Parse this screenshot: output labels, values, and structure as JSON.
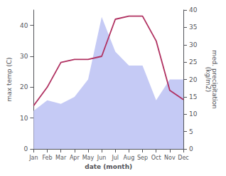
{
  "chart_data": {
    "type": "line",
    "xlabel": "date (month)",
    "ylabel": "max temp (C)",
    "y2label": "med. precipitation\n(kg/m2)",
    "categories": [
      "Jan",
      "Feb",
      "Mar",
      "Apr",
      "May",
      "Jun",
      "Jul",
      "Aug",
      "Sep",
      "Oct",
      "Nov",
      "Dec"
    ],
    "series": [
      {
        "type": "area",
        "axis": "y2",
        "color": "#c5caf5",
        "values": [
          11,
          14,
          13,
          15,
          20,
          38,
          28,
          24,
          24,
          14,
          20,
          20
        ]
      },
      {
        "type": "line",
        "color": "#b03060",
        "values": [
          14,
          20,
          28,
          29,
          29,
          30,
          42,
          43,
          43,
          35,
          19,
          16
        ]
      }
    ],
    "ylim": [
      0,
      45
    ],
    "yticks": [
      0,
      10,
      20,
      30,
      40
    ],
    "y2lim": [
      0,
      40
    ],
    "y2ticks": [
      0,
      5,
      10,
      15,
      20,
      25,
      30,
      35,
      40
    ],
    "grid": false
  }
}
